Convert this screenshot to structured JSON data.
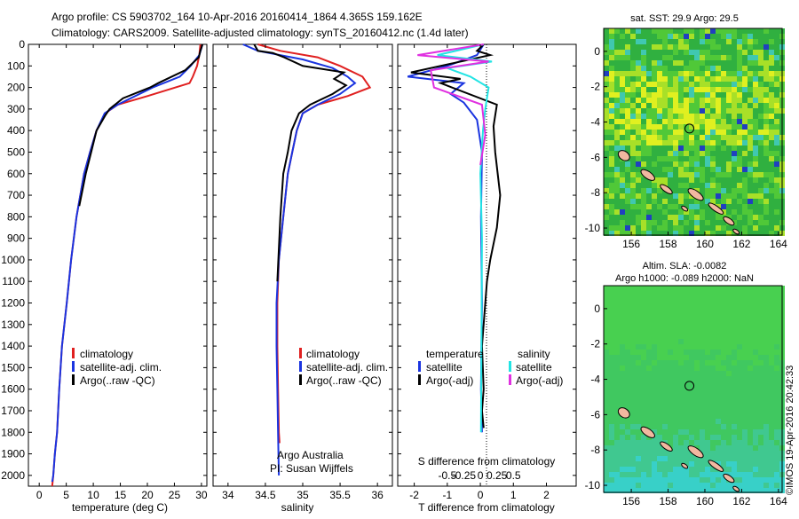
{
  "header": {
    "line1": "Argo profile: CS 5903702_164 10-Apr-2016 20160414_1864 4.365S 159.162E",
    "line2": "Climatology: CARS2009. Satellite-adjusted climatology: synTS_20160412.nc (1.4d later)"
  },
  "colors": {
    "climatology": "#e02020",
    "satellite": "#1a34e0",
    "argo": "#000000",
    "sal_sat": "#22e4e4",
    "sal_argo": "#e030e0"
  },
  "chart_data": [
    {
      "type": "line",
      "id": "temperature",
      "xlabel": "temperature (deg C)",
      "ylabel": "",
      "xlim": [
        -2,
        31
      ],
      "ylim": [
        2050,
        0
      ],
      "xticks": [
        0,
        5,
        10,
        15,
        20,
        25,
        30
      ],
      "yticks": [
        0,
        100,
        200,
        300,
        400,
        500,
        600,
        700,
        800,
        900,
        1000,
        1100,
        1200,
        1300,
        1400,
        1500,
        1600,
        1700,
        1800,
        1900,
        2000
      ],
      "legend": [
        "climatology",
        "satellite-adj. clim.",
        "Argo(..raw -QC)"
      ],
      "series": [
        {
          "name": "climatology",
          "color": "#e02020",
          "x": [
            29.8,
            29.6,
            29.2,
            28.4,
            27.8,
            20,
            14.5,
            12.2,
            10.6,
            9.4,
            8.3,
            6.9,
            5.9,
            5.1,
            4.2,
            3.7,
            3.3,
            2.9,
            2.6,
            2.4
          ],
          "y": [
            0,
            50,
            100,
            150,
            180,
            240,
            280,
            320,
            400,
            500,
            600,
            800,
            1000,
            1200,
            1400,
            1600,
            1800,
            1900,
            2000,
            2050
          ]
        },
        {
          "name": "satellite-adj. clim.",
          "color": "#1a34e0",
          "x": [
            30.2,
            29.6,
            28,
            26,
            21,
            14.5,
            12.1,
            10.6,
            9.4,
            8.3,
            6.9,
            5.9,
            5.1,
            4.2,
            3.7,
            3.3,
            2.9,
            2.6,
            2.4
          ],
          "y": [
            0,
            50,
            100,
            150,
            200,
            280,
            320,
            400,
            500,
            600,
            800,
            1000,
            1200,
            1400,
            1600,
            1800,
            1900,
            2000,
            2030
          ]
        },
        {
          "name": "Argo(..raw -QC)",
          "color": "#000000",
          "x": [
            30.2,
            29.8,
            29.5,
            27,
            22,
            20.5,
            15.5,
            13,
            12.2,
            10.6,
            9.6,
            8.6,
            7.4
          ],
          "y": [
            0,
            30,
            60,
            120,
            180,
            200,
            250,
            300,
            330,
            400,
            500,
            600,
            750
          ]
        }
      ]
    },
    {
      "type": "line",
      "id": "salinity",
      "xlabel": "salinity",
      "xlim": [
        33.8,
        36.2
      ],
      "ylim": [
        2050,
        0
      ],
      "xticks": [
        34,
        34.5,
        35,
        35.5,
        36
      ],
      "legend": [
        "climatology",
        "satellite-adj. clim.",
        "Argo(..raw -QC)"
      ],
      "annotation": [
        "Argo Australia",
        "PI: Susan Wijffels"
      ],
      "series": [
        {
          "name": "climatology",
          "color": "#e02020",
          "x": [
            34.4,
            34.7,
            35.2,
            35.5,
            35.8,
            35.9,
            35.6,
            35.2,
            35.0,
            34.92,
            34.86,
            34.8,
            34.74,
            34.68,
            34.66,
            34.66,
            34.67,
            34.68,
            34.69
          ],
          "y": [
            0,
            30,
            60,
            100,
            150,
            200,
            240,
            280,
            320,
            400,
            500,
            600,
            800,
            1000,
            1200,
            1400,
            1600,
            1800,
            1850
          ]
        },
        {
          "name": "satellite-adj. clim.",
          "color": "#1a34e0",
          "x": [
            34.2,
            34.4,
            35.0,
            35.4,
            35.6,
            35.7,
            35.5,
            35.2,
            35.0,
            34.92,
            34.86,
            34.8,
            34.74,
            34.68,
            34.65,
            34.65,
            34.66,
            34.67,
            34.68
          ],
          "y": [
            0,
            30,
            70,
            110,
            150,
            180,
            230,
            280,
            320,
            400,
            500,
            600,
            800,
            1000,
            1200,
            1400,
            1600,
            1800,
            2000
          ]
        },
        {
          "name": "Argo(..raw -QC)",
          "color": "#000000",
          "x": [
            34.35,
            34.4,
            34.6,
            34.75,
            35.0,
            35.55,
            35.42,
            35.58,
            35.4,
            35.1,
            34.95,
            34.85,
            34.8,
            34.74,
            34.7,
            34.66
          ],
          "y": [
            0,
            30,
            40,
            60,
            100,
            130,
            160,
            190,
            230,
            280,
            320,
            400,
            500,
            600,
            800,
            1100
          ]
        }
      ]
    },
    {
      "type": "line",
      "id": "difference",
      "xlabel": "T difference from climatology",
      "x2label": "S difference from climatology",
      "xlim": [
        -2.5,
        2.9
      ],
      "ylim": [
        2050,
        0
      ],
      "xticks": [
        -2,
        -1,
        0,
        1,
        2
      ],
      "x2ticks": [
        "-0.5",
        "-0.25",
        "0",
        "0.25",
        "0.5"
      ],
      "legend_left": {
        "title": "temperature",
        "items": [
          "satellite",
          "Argo(-adj)"
        ]
      },
      "legend_right": {
        "title": "salinity",
        "items": [
          "satellite",
          "Argo(-adj)"
        ]
      },
      "series": [
        {
          "name": "T satellite",
          "color": "#1a34e0",
          "x": [
            0.1,
            -0.1,
            -1.0,
            -2.2,
            -0.5,
            -0.9,
            -0.5,
            -0.1,
            0.05,
            0.02,
            0.05,
            0.02,
            0.05
          ],
          "y": [
            0,
            50,
            100,
            150,
            180,
            230,
            270,
            350,
            500,
            800,
            1200,
            1600,
            1800
          ]
        },
        {
          "name": "T Argo(-adj)",
          "color": "#000000",
          "x": [
            0.1,
            -0.1,
            0.3,
            -2.1,
            -0.6,
            -1.2,
            0.5,
            0.4,
            0.45,
            0.6,
            0.5,
            0.3,
            0.2,
            0.05,
            0.1,
            0.05,
            0.1
          ],
          "y": [
            0,
            30,
            50,
            130,
            160,
            180,
            280,
            380,
            500,
            700,
            850,
            1000,
            1100,
            1400,
            1600,
            1700,
            1780
          ]
        },
        {
          "name": "S satellite",
          "color": "#22e4e4",
          "x": [
            0.1,
            -1.3,
            0.35,
            -1.0,
            -0.3,
            0.25,
            0.15,
            0.08,
            0.0,
            0.05,
            0.02
          ],
          "y": [
            0,
            50,
            80,
            110,
            150,
            200,
            300,
            400,
            600,
            900,
            1800
          ]
        },
        {
          "name": "S Argo(-adj)",
          "color": "#e030e0",
          "x": [
            0.1,
            -1.9,
            0.25,
            -1.5,
            -1.4,
            0.05,
            0.15,
            0.0
          ],
          "y": [
            0,
            50,
            80,
            120,
            200,
            280,
            420,
            560
          ]
        }
      ]
    },
    {
      "type": "heatmap",
      "id": "sst-map",
      "title": "sat. SST: 29.9 Argo: 29.5",
      "xlim": [
        154.5,
        164.2
      ],
      "ylim": [
        -10.4,
        1.3
      ],
      "xticks": [
        156,
        158,
        160,
        162,
        164
      ],
      "yticks": [
        0,
        -2,
        -4,
        -6,
        -8,
        -10
      ],
      "argo_position": [
        159.16,
        -4.37
      ]
    },
    {
      "type": "heatmap",
      "id": "sla-map",
      "title_lines": [
        "Altim. SLA: -0.0082",
        "Argo h1000: -0.089 h2000: NaN"
      ],
      "xlim": [
        154.5,
        164.2
      ],
      "ylim": [
        -10.4,
        1.3
      ],
      "xticks": [
        156,
        158,
        160,
        162,
        164
      ],
      "yticks": [
        0,
        -2,
        -4,
        -6,
        -8,
        -10
      ],
      "argo_position": [
        159.16,
        -4.37
      ]
    }
  ],
  "footer": {
    "credit": "©IMOS 19-Apr-2016 20:42:33"
  }
}
